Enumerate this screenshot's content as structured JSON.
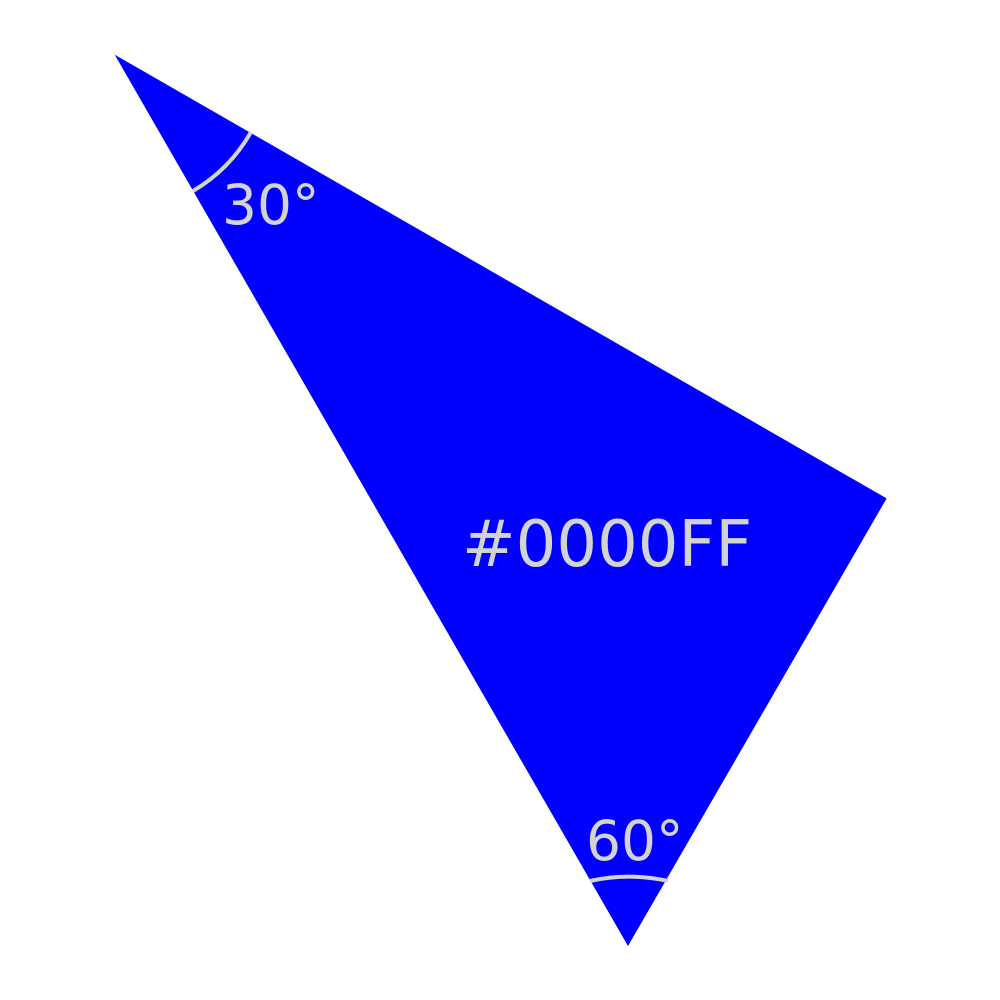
{
  "diagram": {
    "shape": "triangle",
    "fill_color": "#0000FF",
    "stroke_color": "#FFFFFF",
    "fill_label": "#0000FF",
    "label_color": "#D3D3D3",
    "arc_color": "#D3D3D3",
    "angles": [
      {
        "label": "30°",
        "value": 30
      },
      {
        "label": "60°",
        "value": 60
      }
    ]
  }
}
